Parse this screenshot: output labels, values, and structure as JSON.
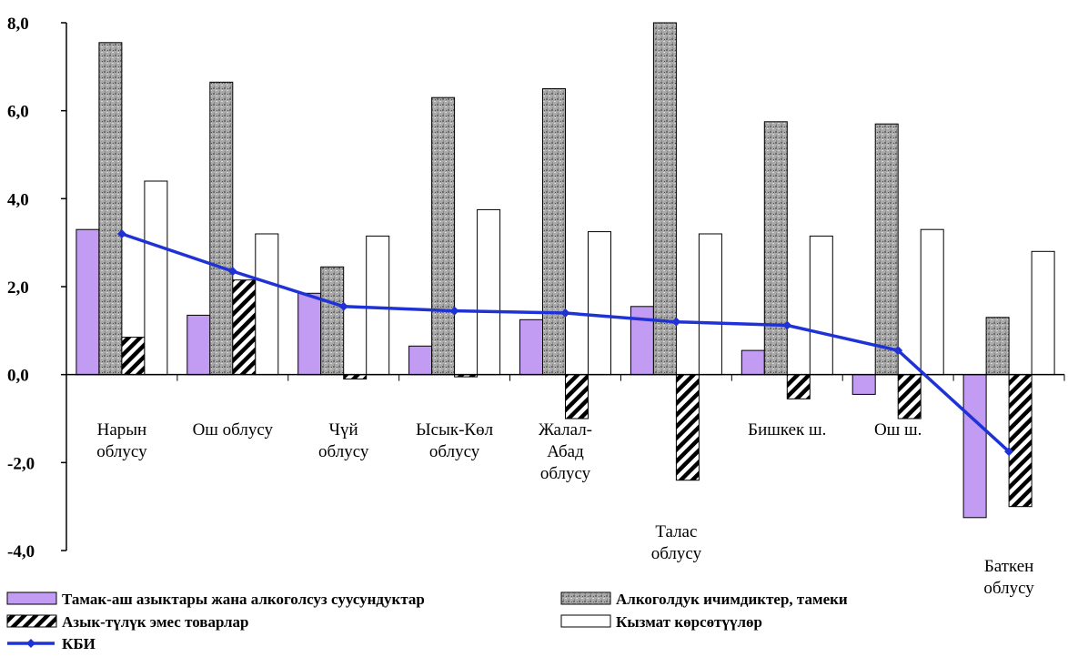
{
  "chart_data": {
    "type": "bar",
    "title": "",
    "xlabel": "",
    "ylabel": "",
    "ylim": [
      -4.0,
      8.0
    ],
    "y_ticks": [
      "-4,0",
      "-2,0",
      "0,0",
      "2,0",
      "4,0",
      "6,0",
      "8,0"
    ],
    "grid": false,
    "legend_position": "bottom",
    "categories": [
      "Нарын облусу",
      "Ош облусу",
      "Чүй облусу",
      "Ысык-Көл облусу",
      "Жалал-Абад облусу",
      "Талас облусу",
      "Бишкек ш.",
      "Ош ш.",
      "Баткен облусу"
    ],
    "category_label_lines": [
      [
        "Нарын",
        "облусу"
      ],
      [
        "Ош облусу"
      ],
      [
        "Чүй",
        "облусу"
      ],
      [
        "Ысык-Көл",
        "облусу"
      ],
      [
        "Жалал-",
        "Абад",
        "облусу"
      ],
      [
        "Талас",
        "облусу"
      ],
      [
        "Бишкек ш."
      ],
      [
        "Ош ш."
      ],
      [
        "Баткен",
        "облусу"
      ]
    ],
    "series": [
      {
        "name": "Тамак-аш азыктары жана алкоголсуз суусундуктар",
        "type": "bar",
        "color": "#c29bf2",
        "values": [
          3.3,
          1.35,
          1.85,
          0.65,
          1.25,
          1.55,
          0.55,
          -0.45,
          -3.25
        ]
      },
      {
        "name": "Алкоголдук ичимдиктер, тамеки",
        "type": "bar",
        "color": "#a8a8a8",
        "values": [
          7.55,
          6.65,
          2.45,
          6.3,
          6.5,
          8.0,
          5.75,
          5.7,
          1.3
        ]
      },
      {
        "name": "Азык-түлүк эмес товарлар",
        "type": "bar",
        "color": "#000000",
        "values": [
          0.85,
          2.15,
          -0.1,
          -0.05,
          -1.0,
          -2.4,
          -0.55,
          -1.0,
          -3.0
        ]
      },
      {
        "name": "Кызмат көрсөтүүлөр",
        "type": "bar",
        "color": "#ffffff",
        "values": [
          4.4,
          3.2,
          3.15,
          3.75,
          3.25,
          3.2,
          3.15,
          3.3,
          2.8
        ]
      },
      {
        "name": "КБИ",
        "type": "line",
        "color": "#1f32d6",
        "values": [
          3.2,
          2.35,
          1.55,
          1.45,
          1.4,
          1.2,
          1.12,
          0.55,
          -1.75
        ]
      }
    ]
  }
}
